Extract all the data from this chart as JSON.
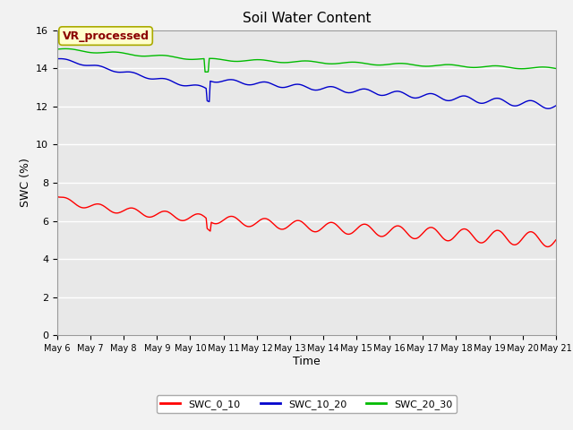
{
  "title": "Soil Water Content",
  "xlabel": "Time",
  "ylabel": "SWC (%)",
  "ylim": [
    0,
    16
  ],
  "yticks": [
    0,
    2,
    4,
    6,
    8,
    10,
    12,
    14,
    16
  ],
  "x_labels": [
    "May 6",
    "May 7",
    "May 8",
    "May 9",
    "May 10",
    "May 11",
    "May 12",
    "May 13",
    "May 14",
    "May 15",
    "May 16",
    "May 17",
    "May 18",
    "May 19",
    "May 20",
    "May 21"
  ],
  "annotation_text": "VR_processed",
  "annotation_bg": "#ffffcc",
  "annotation_border": "#aaaa00",
  "annotation_text_color": "#8b0000",
  "colors": {
    "SWC_0_10": "#ff0000",
    "SWC_10_20": "#0000cc",
    "SWC_20_30": "#00bb00"
  },
  "background_color": "#e8e8e8",
  "grid_color": "#ffffff",
  "fig_bg": "#f2f2f2"
}
